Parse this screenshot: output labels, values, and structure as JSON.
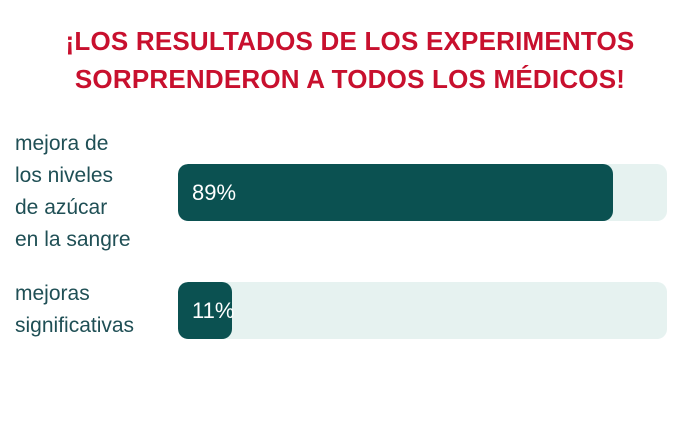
{
  "chart_data": {
    "type": "bar",
    "orientation": "horizontal",
    "title": "¡LOS RESULTADOS DE LOS EXPERIMENTOS SORPRENDERON A TODOS LOS MÉDICOS!",
    "categories": [
      "mejora de los niveles de azúcar en la sangre",
      "mejoras significativas"
    ],
    "values": [
      89,
      11
    ],
    "value_labels": [
      "89%",
      "11%"
    ],
    "color": "#0b5151",
    "xlim": [
      0,
      100
    ]
  }
}
